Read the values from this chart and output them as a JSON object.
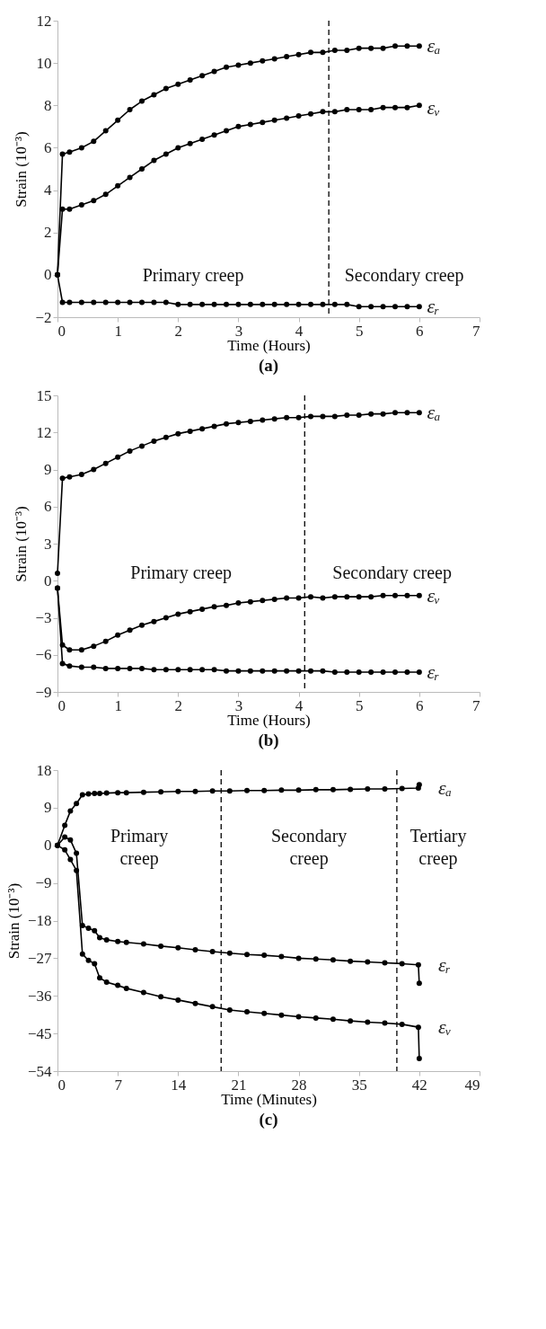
{
  "chart_data": [
    {
      "type": "line",
      "title": "(a)",
      "xlabel": "Time (Hours)",
      "ylabel": "Strain (10⁻³)",
      "xlim": [
        0,
        7
      ],
      "xticks": [
        0,
        1,
        2,
        3,
        4,
        5,
        6,
        7
      ],
      "ylim": [
        -2,
        12
      ],
      "yticks": [
        -2,
        0,
        2,
        4,
        6,
        8,
        10,
        12
      ],
      "grid": false,
      "marker": "circle",
      "line_style": "solid",
      "x": [
        0,
        0.083,
        0.2,
        0.4,
        0.6,
        0.8,
        1.0,
        1.2,
        1.4,
        1.6,
        1.8,
        2.0,
        2.2,
        2.4,
        2.6,
        2.8,
        3.0,
        3.2,
        3.4,
        3.6,
        3.8,
        4.0,
        4.2,
        4.4,
        4.6,
        4.8,
        5.0,
        5.2,
        5.4,
        5.6,
        5.8,
        6.0
      ],
      "series": [
        {
          "name": "εₐ",
          "color": "#000000",
          "values": [
            0,
            5.7,
            5.8,
            6.0,
            6.3,
            6.8,
            7.3,
            7.8,
            8.2,
            8.5,
            8.8,
            9.0,
            9.2,
            9.4,
            9.6,
            9.8,
            9.9,
            10.0,
            10.1,
            10.2,
            10.3,
            10.4,
            10.5,
            10.5,
            10.6,
            10.6,
            10.7,
            10.7,
            10.7,
            10.8,
            10.8,
            10.8
          ]
        },
        {
          "name": "εᵥ",
          "color": "#000000",
          "values": [
            0,
            3.1,
            3.1,
            3.3,
            3.5,
            3.8,
            4.2,
            4.6,
            5.0,
            5.4,
            5.7,
            6.0,
            6.2,
            6.4,
            6.6,
            6.8,
            7.0,
            7.1,
            7.2,
            7.3,
            7.4,
            7.5,
            7.6,
            7.7,
            7.7,
            7.8,
            7.8,
            7.8,
            7.9,
            7.9,
            7.9,
            8.0
          ]
        },
        {
          "name": "εᵣ",
          "color": "#000000",
          "values": [
            0,
            -1.3,
            -1.3,
            -1.3,
            -1.3,
            -1.3,
            -1.3,
            -1.3,
            -1.3,
            -1.3,
            -1.3,
            -1.4,
            -1.4,
            -1.4,
            -1.4,
            -1.4,
            -1.4,
            -1.4,
            -1.4,
            -1.4,
            -1.4,
            -1.4,
            -1.4,
            -1.4,
            -1.4,
            -1.4,
            -1.5,
            -1.5,
            -1.5,
            -1.5,
            -1.5,
            -1.5
          ]
        }
      ],
      "ref_lines": [
        {
          "axis": "x",
          "value": 4.5,
          "color": "#000000",
          "line_style": "dashed"
        }
      ],
      "annotations": [
        "Primary creep",
        "Secondary creep"
      ]
    },
    {
      "type": "line",
      "title": "(b)",
      "xlabel": "Time (Hours)",
      "ylabel": "Strain (10⁻³)",
      "xlim": [
        0,
        7
      ],
      "xticks": [
        0,
        1,
        2,
        3,
        4,
        5,
        6,
        7
      ],
      "ylim": [
        -9,
        15
      ],
      "yticks": [
        -9,
        -6,
        -3,
        0,
        3,
        6,
        9,
        12,
        15
      ],
      "grid": false,
      "marker": "circle",
      "line_style": "solid",
      "x": [
        0,
        0.083,
        0.2,
        0.4,
        0.6,
        0.8,
        1.0,
        1.2,
        1.4,
        1.6,
        1.8,
        2.0,
        2.2,
        2.4,
        2.6,
        2.8,
        3.0,
        3.2,
        3.4,
        3.6,
        3.8,
        4.0,
        4.2,
        4.4,
        4.6,
        4.8,
        5.0,
        5.2,
        5.4,
        5.6,
        5.8,
        6.0
      ],
      "series": [
        {
          "name": "εₐ",
          "color": "#000000",
          "values": [
            0.6,
            8.3,
            8.4,
            8.6,
            9.0,
            9.5,
            10.0,
            10.5,
            10.9,
            11.3,
            11.6,
            11.9,
            12.1,
            12.3,
            12.5,
            12.7,
            12.8,
            12.9,
            13.0,
            13.1,
            13.2,
            13.2,
            13.3,
            13.3,
            13.3,
            13.4,
            13.4,
            13.5,
            13.5,
            13.6,
            13.6,
            13.6
          ]
        },
        {
          "name": "εᵥ",
          "color": "#000000",
          "values": [
            -0.6,
            -5.2,
            -5.6,
            -5.6,
            -5.3,
            -4.9,
            -4.4,
            -4.0,
            -3.6,
            -3.3,
            -3.0,
            -2.7,
            -2.5,
            -2.3,
            -2.1,
            -2.0,
            -1.8,
            -1.7,
            -1.6,
            -1.5,
            -1.4,
            -1.4,
            -1.3,
            -1.4,
            -1.3,
            -1.3,
            -1.3,
            -1.3,
            -1.2,
            -1.2,
            -1.2,
            -1.2
          ]
        },
        {
          "name": "εᵣ",
          "color": "#000000",
          "values": [
            -0.6,
            -6.7,
            -6.9,
            -7.0,
            -7.0,
            -7.1,
            -7.1,
            -7.1,
            -7.1,
            -7.2,
            -7.2,
            -7.2,
            -7.2,
            -7.2,
            -7.2,
            -7.3,
            -7.3,
            -7.3,
            -7.3,
            -7.3,
            -7.3,
            -7.3,
            -7.3,
            -7.3,
            -7.4,
            -7.4,
            -7.4,
            -7.4,
            -7.4,
            -7.4,
            -7.4,
            -7.4
          ]
        }
      ],
      "ref_lines": [
        {
          "axis": "x",
          "value": 4.1,
          "color": "#000000",
          "line_style": "dashed"
        }
      ],
      "annotations": [
        "Primary creep",
        "Secondary creep"
      ]
    },
    {
      "type": "line",
      "title": "(c)",
      "xlabel": "Time (Minutes)",
      "ylabel": "Strain (10⁻³)",
      "xlim": [
        0,
        49
      ],
      "xticks": [
        0,
        7,
        14,
        21,
        28,
        35,
        42,
        49
      ],
      "ylim": [
        -54,
        18
      ],
      "yticks": [
        -54,
        -45,
        -36,
        -27,
        -18,
        -9,
        0,
        9,
        18
      ],
      "grid": false,
      "marker": "circle",
      "line_style": "solid",
      "x": [
        0,
        0.85,
        1.5,
        2.2,
        2.9,
        3.6,
        4.3,
        4.9,
        5.7,
        7,
        8,
        10,
        12,
        14,
        16,
        18,
        20,
        22,
        24,
        26,
        28,
        30,
        32,
        34,
        36,
        38,
        40,
        41.9,
        42
      ],
      "series": [
        {
          "name": "εₐ",
          "color": "#000000",
          "values": [
            0,
            4.8,
            8.2,
            10.0,
            12.1,
            12.3,
            12.4,
            12.4,
            12.5,
            12.6,
            12.6,
            12.7,
            12.8,
            12.9,
            12.9,
            13.0,
            13.0,
            13.1,
            13.1,
            13.2,
            13.2,
            13.3,
            13.3,
            13.4,
            13.5,
            13.5,
            13.6,
            13.7,
            14.5
          ]
        },
        {
          "name": "εᵣ",
          "color": "#000000",
          "values": [
            0,
            2.0,
            1.3,
            -1.9,
            -19.2,
            -19.8,
            -20.4,
            -22.1,
            -22.6,
            -23.0,
            -23.2,
            -23.6,
            -24.1,
            -24.5,
            -25.0,
            -25.4,
            -25.8,
            -26.1,
            -26.3,
            -26.6,
            -27.0,
            -27.2,
            -27.4,
            -27.7,
            -27.9,
            -28.1,
            -28.3,
            -28.6,
            -33.0
          ]
        },
        {
          "name": "εᵥ",
          "color": "#000000",
          "values": [
            0,
            -1.1,
            -3.4,
            -6.0,
            -26.0,
            -27.5,
            -28.3,
            -31.7,
            -32.7,
            -33.5,
            -34.2,
            -35.2,
            -36.2,
            -37.0,
            -37.8,
            -38.6,
            -39.4,
            -39.8,
            -40.2,
            -40.6,
            -41.0,
            -41.3,
            -41.6,
            -42.0,
            -42.3,
            -42.5,
            -42.8,
            -43.5,
            -51.0
          ]
        }
      ],
      "ref_lines": [
        {
          "axis": "x",
          "value": 19,
          "color": "#000000",
          "line_style": "dashed"
        },
        {
          "axis": "x",
          "value": 39.4,
          "color": "#000000",
          "line_style": "dashed"
        }
      ],
      "annotations": [
        "Primary\ncreep",
        "Secondary\ncreep",
        "Tertiary\ncreep"
      ]
    }
  ]
}
